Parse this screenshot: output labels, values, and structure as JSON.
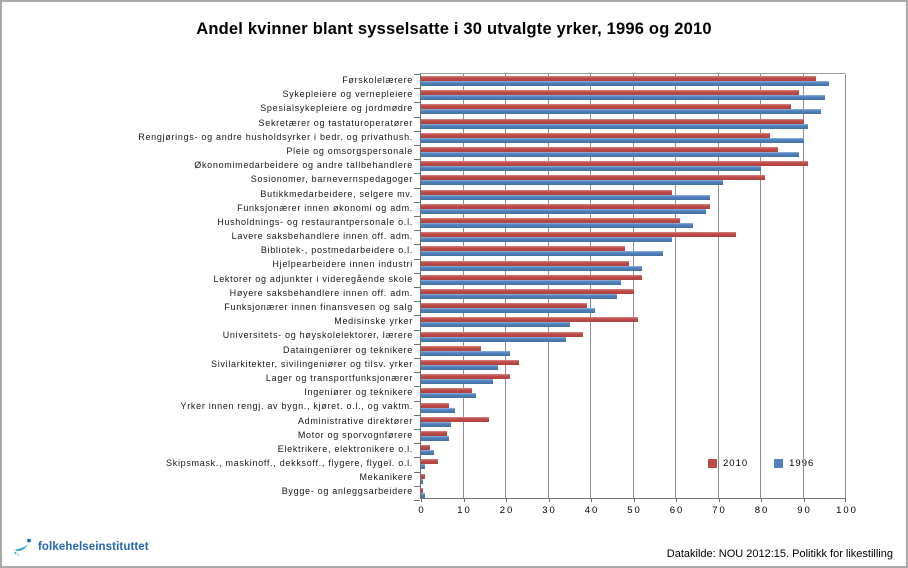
{
  "title": "Andel kvinner blant sysselsatte i 30 utvalgte yrker, 1996 og 2010",
  "chart_data": {
    "type": "bar",
    "orientation": "horizontal",
    "title": "Andel kvinner blant sysselsatte i 30 utvalgte yrker, 1996 og 2010",
    "xlabel": "",
    "ylabel": "",
    "xlim": [
      0,
      100
    ],
    "xticks": [
      0,
      10,
      20,
      30,
      40,
      50,
      60,
      70,
      80,
      90,
      100
    ],
    "grid": true,
    "legend_position": "inside-bottom-right",
    "categories": [
      "Førskolelærere",
      "Sykepleiere og vernepleiere",
      "Spesialsykepleiere og jordmødre",
      "Sekretærer og tastaturoperatører",
      "Rengjørings- og andre husholdsyrker i bedr. og privathush.",
      "Pleie og omsorgspersonale",
      "Økonomimedarbeidere og andre tallbehandlere",
      "Sosionomer, barnevernspedagoger",
      "Butikkmedarbeidere, selgere mv.",
      "Funksjonærer innen økonomi og adm.",
      "Husholdnings- og restaurantpersonale o.l.",
      "Lavere saksbehandlere innen off. adm.",
      "Bibliotek-, postmedarbeidere o.l.",
      "Hjelpearbeidere innen industri",
      "Lektorer og adjunkter i videregående skole",
      "Høyere saksbehandlere innen off. adm.",
      "Funksjonærer innen finansvesen og salg",
      "Medisinske yrker",
      "Universitets- og høyskolelektorer, lærere",
      "Dataingeniører og teknikere",
      "Sivilarkitekter, sivilingeniører og tilsv. yrker",
      "Lager og transportfunksjonærer",
      "Ingeniører og teknikere",
      "Yrker innen rengj. av bygn., kjøret. o.l., og vaktm.",
      "Administrative direktører",
      "Motor og sporvognførere",
      "Elektrikere, elektronikere o.l.",
      "Skipsmask., maskinoff., dekksoff., flygere, flygel. o.l.",
      "Mekanikere",
      "Bygge- og anleggsarbeidere"
    ],
    "series": [
      {
        "name": "2010",
        "color": "#BE4B48",
        "values": [
          93,
          89,
          87,
          90,
          82,
          84,
          91,
          81,
          59,
          68,
          61,
          74,
          48,
          49,
          52,
          50,
          39,
          51,
          38,
          14,
          23,
          21,
          12,
          6.5,
          16,
          6,
          2,
          4,
          1,
          0.5
        ]
      },
      {
        "name": "1996",
        "color": "#4F81BD",
        "values": [
          96,
          95,
          94,
          91,
          90,
          89,
          80,
          71,
          68,
          67,
          64,
          59,
          57,
          52,
          47,
          46,
          41,
          35,
          34,
          21,
          18,
          17,
          13,
          8,
          7,
          6.5,
          3,
          1,
          0.5,
          1
        ]
      }
    ]
  },
  "footer": {
    "logo_text": "folkehelseinstituttet",
    "source": "Datakilde: NOU 2012:15. Politikk for likestilling"
  },
  "colors": {
    "series_2010": "#BE4B48",
    "series_1996": "#4F81BD",
    "gridline": "#8F8F8F",
    "logo_blue": "#2368B1",
    "logo_teal": "#35B6CB"
  }
}
